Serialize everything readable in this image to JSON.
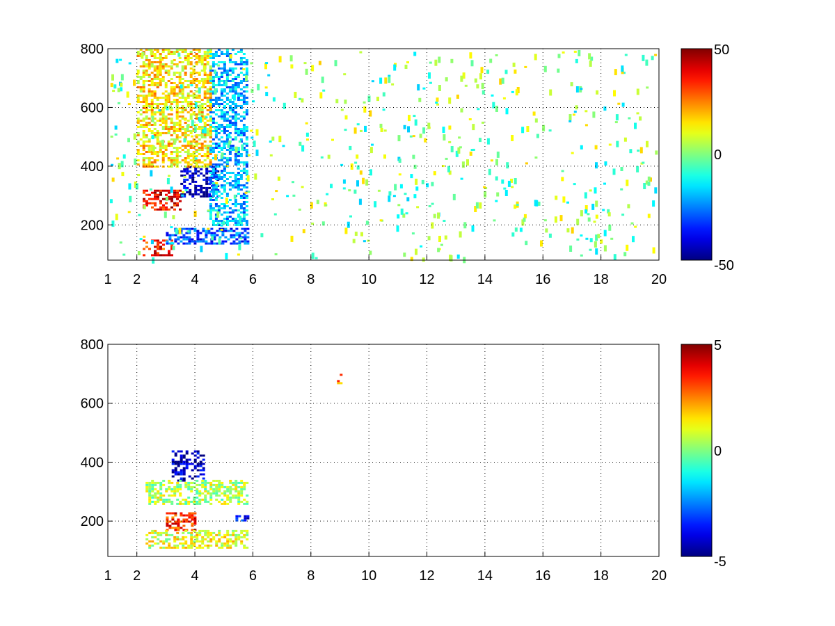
{
  "figure": {
    "background": "#ffffff"
  },
  "chart_data": [
    {
      "type": "heatmap",
      "title": "",
      "xlabel": "",
      "ylabel": "",
      "xlim": [
        1,
        20
      ],
      "ylim": [
        80,
        800
      ],
      "x_ticks": [
        1,
        2,
        4,
        6,
        8,
        10,
        12,
        14,
        16,
        18,
        20
      ],
      "x_tick_labels": [
        "1",
        "2",
        "4",
        "6",
        "8",
        "10",
        "12",
        "14",
        "16",
        "18",
        "20"
      ],
      "y_ticks": [
        200,
        400,
        600,
        800
      ],
      "y_tick_labels": [
        "200",
        "400",
        "600",
        "800"
      ],
      "grid": true,
      "colormap": "jet",
      "clim": [
        -50,
        50
      ],
      "colorbar_ticks": [
        -50,
        0,
        50
      ],
      "colorbar_tick_labels": [
        "-50",
        "0",
        "50"
      ],
      "features": [
        {
          "x": [
            2.2,
            3.5
          ],
          "y": [
            250,
            320
          ],
          "value": 40
        },
        {
          "x": [
            3.5,
            4.8
          ],
          "y": [
            300,
            400
          ],
          "value": -45
        },
        {
          "x": [
            2.2,
            3.2
          ],
          "y": [
            100,
            150
          ],
          "value": 35
        },
        {
          "x": [
            3.0,
            5.8
          ],
          "y": [
            140,
            190
          ],
          "value": -30
        },
        {
          "x": [
            4.5,
            5.8
          ],
          "y": [
            200,
            800
          ],
          "value": -20
        },
        {
          "x": [
            2.0,
            4.5
          ],
          "y": [
            400,
            800
          ],
          "value": 15
        }
      ]
    },
    {
      "type": "heatmap",
      "title": "",
      "xlabel": "",
      "ylabel": "",
      "xlim": [
        1,
        20
      ],
      "ylim": [
        80,
        800
      ],
      "x_ticks": [
        1,
        2,
        4,
        6,
        8,
        10,
        12,
        14,
        16,
        18,
        20
      ],
      "x_tick_labels": [
        "1",
        "2",
        "4",
        "6",
        "8",
        "10",
        "12",
        "14",
        "16",
        "18",
        "20"
      ],
      "y_ticks": [
        200,
        400,
        600,
        800
      ],
      "y_tick_labels": [
        "200",
        "400",
        "600",
        "800"
      ],
      "grid": true,
      "colormap": "jet",
      "clim": [
        -5,
        5
      ],
      "colorbar_ticks": [
        -5,
        0,
        5
      ],
      "colorbar_tick_labels": [
        "-5",
        "0",
        "5"
      ],
      "features": [
        {
          "x": [
            3.2,
            4.3
          ],
          "y": [
            340,
            440
          ],
          "value": -4.5
        },
        {
          "x": [
            2.3,
            5.8
          ],
          "y": [
            260,
            340
          ],
          "value": 0.5
        },
        {
          "x": [
            3.0,
            4.0
          ],
          "y": [
            170,
            230
          ],
          "value": 3.5
        },
        {
          "x": [
            2.3,
            5.8
          ],
          "y": [
            110,
            170
          ],
          "value": 1.0
        },
        {
          "x": [
            5.4,
            5.8
          ],
          "y": [
            200,
            220
          ],
          "value": -4.0
        },
        {
          "x": [
            8.9,
            9.0
          ],
          "y": [
            670,
            700
          ],
          "value": 2.5
        }
      ]
    }
  ]
}
